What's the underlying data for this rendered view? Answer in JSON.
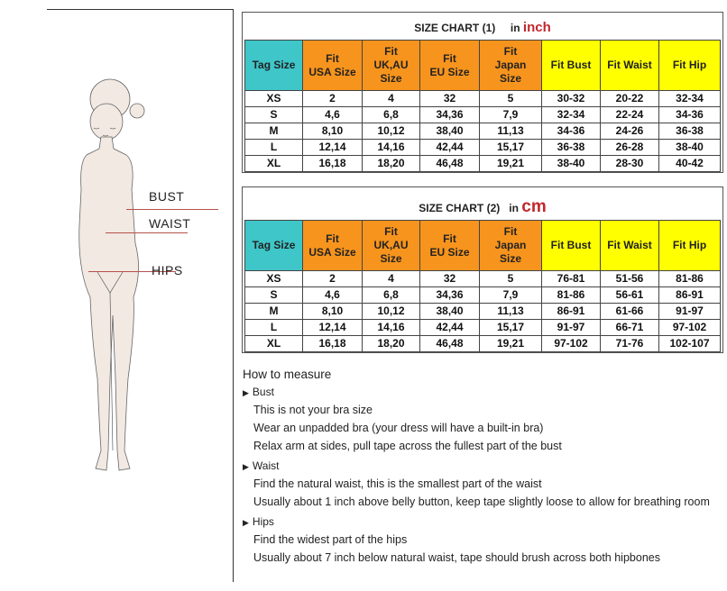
{
  "figure": {
    "labels": {
      "bust": "BUST",
      "waist": "WAIST",
      "hips": "HIPS"
    },
    "line_color": "#b5524a"
  },
  "colors": {
    "tag": "#3ec6c9",
    "intl": "#f7941d",
    "body": "#ffff00",
    "unit": "#c0282d"
  },
  "headers": [
    "Tag Size",
    "Fit\nUSA Size",
    "Fit\nUK,AU\nSize",
    "Fit\nEU Size",
    "Fit\nJapan\nSize",
    "Fit Bust",
    "Fit Waist",
    "Fit Hip"
  ],
  "charts": [
    {
      "title": "SIZE CHART (1)",
      "unit_prefix": "in",
      "unit": "inch",
      "rows": [
        [
          "XS",
          "2",
          "4",
          "32",
          "5",
          "30-32",
          "20-22",
          "32-34"
        ],
        [
          "S",
          "4,6",
          "6,8",
          "34,36",
          "7,9",
          "32-34",
          "22-24",
          "34-36"
        ],
        [
          "M",
          "8,10",
          "10,12",
          "38,40",
          "11,13",
          "34-36",
          "24-26",
          "36-38"
        ],
        [
          "L",
          "12,14",
          "14,16",
          "42,44",
          "15,17",
          "36-38",
          "26-28",
          "38-40"
        ],
        [
          "XL",
          "16,18",
          "18,20",
          "46,48",
          "19,21",
          "38-40",
          "28-30",
          "40-42"
        ]
      ]
    },
    {
      "title": "SIZE CHART (2)",
      "unit_prefix": "in",
      "unit": "cm",
      "rows": [
        [
          "XS",
          "2",
          "4",
          "32",
          "5",
          "76-81",
          "51-56",
          "81-86"
        ],
        [
          "S",
          "4,6",
          "6,8",
          "34,36",
          "7,9",
          "81-86",
          "56-61",
          "86-91"
        ],
        [
          "M",
          "8,10",
          "10,12",
          "38,40",
          "11,13",
          "86-91",
          "61-66",
          "91-97"
        ],
        [
          "L",
          "12,14",
          "14,16",
          "42,44",
          "15,17",
          "91-97",
          "66-71",
          "97-102"
        ],
        [
          "XL",
          "16,18",
          "18,20",
          "46,48",
          "19,21",
          "97-102",
          "71-76",
          "102-107"
        ]
      ]
    }
  ],
  "how_to_measure": {
    "title": "How to measure",
    "sections": [
      {
        "name": "Bust",
        "lines": [
          "This is not your bra size",
          "Wear an unpadded bra (your dress will have a built-in bra)",
          "Relax arm at sides, pull tape across the fullest part of the bust"
        ]
      },
      {
        "name": "Waist",
        "lines": [
          "Find the natural waist, this is the smallest part of the waist",
          "Usually about 1 inch above belly button, keep tape slightly loose to allow for breathing room"
        ]
      },
      {
        "name": "Hips",
        "lines": [
          "Find the widest part of the hips",
          "Usually about 7 inch below natural waist, tape should brush across both hipbones"
        ]
      }
    ]
  }
}
